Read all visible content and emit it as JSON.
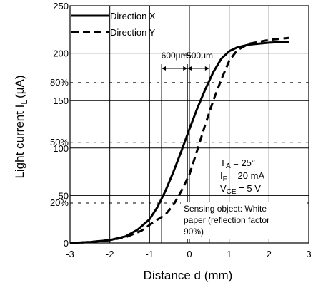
{
  "chart_data": {
    "type": "line",
    "xlabel": "Distance d (mm)",
    "ylabel": "Light current  I",
    "ylabel_sub": "L",
    "ylabel_unit": "(μA)",
    "xlim": [
      -3,
      3
    ],
    "ylim": [
      0,
      250
    ],
    "xticks": [
      -3,
      -2,
      -1,
      0,
      1,
      2,
      3
    ],
    "yticks": [
      0,
      50,
      100,
      150,
      200,
      250
    ],
    "grid": true,
    "legend_position": "top-left",
    "series": [
      {
        "name": "Direction X",
        "style": "solid",
        "x": [
          -3.0,
          -2.5,
          -2.0,
          -1.6,
          -1.3,
          -1.0,
          -0.8,
          -0.6,
          -0.4,
          -0.2,
          0.0,
          0.2,
          0.4,
          0.6,
          0.8,
          1.0,
          1.2,
          1.5,
          2.0,
          2.5
        ],
        "y": [
          0,
          1,
          3,
          7,
          14,
          25,
          38,
          55,
          75,
          97,
          120,
          142,
          162,
          180,
          194,
          202,
          206,
          209,
          211,
          212
        ]
      },
      {
        "name": "Direction Y",
        "style": "dashed",
        "x": [
          -3.0,
          -2.5,
          -2.0,
          -1.6,
          -1.2,
          -0.9,
          -0.6,
          -0.4,
          -0.2,
          0.0,
          0.2,
          0.4,
          0.6,
          0.8,
          1.0,
          1.2,
          1.5,
          2.0,
          2.5
        ],
        "y": [
          0,
          1,
          3,
          6,
          13,
          22,
          30,
          40,
          55,
          72,
          98,
          125,
          150,
          172,
          192,
          203,
          210,
          214,
          216
        ]
      }
    ],
    "reference_levels": [
      {
        "label": "80%",
        "value": 169
      },
      {
        "label": "50%",
        "value": 106
      },
      {
        "label": "20%",
        "value": 42
      }
    ],
    "vertical_markers": [
      -0.7,
      -0.05,
      0.5
    ],
    "dimension_labels": [
      "600μm",
      "500μm"
    ],
    "conditions": {
      "ta": "T",
      "ta_sub": "A",
      "ta_val": " = 25°",
      "if": "I",
      "if_sub": "F",
      "if_val": " = 20 mA",
      "vce": "V",
      "vce_sub": "CE",
      "vce_val": " = 5 V"
    },
    "sensing_note": [
      "Sensing object: White",
      "paper (reflection factor",
      "90%)"
    ]
  }
}
